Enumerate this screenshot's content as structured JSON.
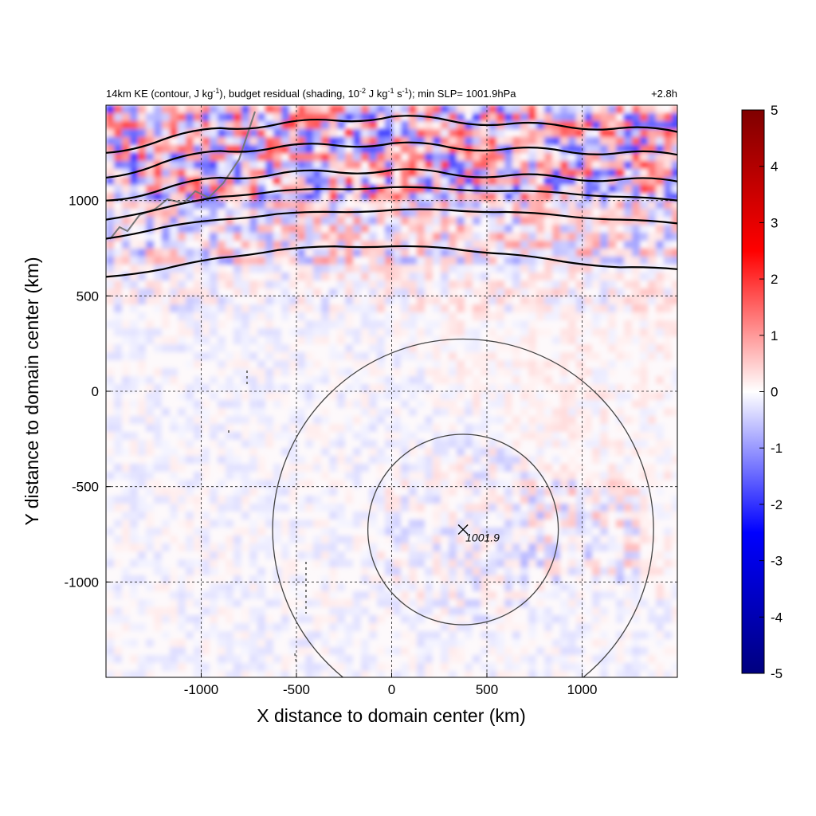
{
  "title": {
    "pre": "14km KE (contour, J kg",
    "sup1": "-1",
    "mid1": "), budget residual (shading, 10",
    "sup2": "-2",
    "mid2": " J kg",
    "sup3": "-1",
    "mid3": " s",
    "sup4": "-1",
    "post": "); min SLP= 1001.9hPa",
    "time": "+2.8h"
  },
  "chart_data": {
    "type": "heatmap",
    "xlabel": "X distance to domain center (km)",
    "ylabel": "Y distance to domain center (km)",
    "xlim": [
      -1500,
      1500
    ],
    "ylim": [
      -1500,
      1500
    ],
    "xticks": [
      -1000,
      -500,
      0,
      500,
      1000
    ],
    "yticks": [
      1000,
      500,
      0,
      -500,
      -1000
    ],
    "grid": true,
    "colorbar": {
      "min": -5,
      "max": 5,
      "ticks": [
        5,
        4,
        3,
        2,
        1,
        0,
        -1,
        -2,
        -3,
        -4,
        -5
      ],
      "colors": [
        "#00007f",
        "#0000ff",
        "#ffffff",
        "#ff0000",
        "#7f0000"
      ]
    },
    "center_marker": {
      "x": 375,
      "y": -725,
      "label": "1001.9"
    },
    "range_circles_km": [
      500,
      1000
    ],
    "ke_contours": [
      {
        "y": [
          600,
          640,
          700,
          740,
          760,
          760,
          750,
          720,
          680,
          650,
          640
        ]
      },
      {
        "y": [
          800,
          860,
          900,
          930,
          940,
          950,
          950,
          940,
          920,
          900,
          880
        ]
      },
      {
        "y": [
          900,
          960,
          1020,
          1050,
          1060,
          1070,
          1060,
          1050,
          1040,
          1020,
          1000
        ]
      },
      {
        "y": [
          1000,
          1060,
          1120,
          1140,
          1150,
          1160,
          1140,
          1130,
          1120,
          1110,
          1100
        ]
      },
      {
        "y": [
          1120,
          1200,
          1260,
          1280,
          1290,
          1300,
          1280,
          1270,
          1260,
          1250,
          1240
        ]
      },
      {
        "y": [
          1250,
          1320,
          1380,
          1400,
          1420,
          1440,
          1420,
          1400,
          1390,
          1380,
          1360
        ]
      }
    ],
    "ke_contour_x": [
      -1500,
      -1200,
      -900,
      -600,
      -300,
      0,
      300,
      600,
      900,
      1200,
      1500
    ]
  }
}
